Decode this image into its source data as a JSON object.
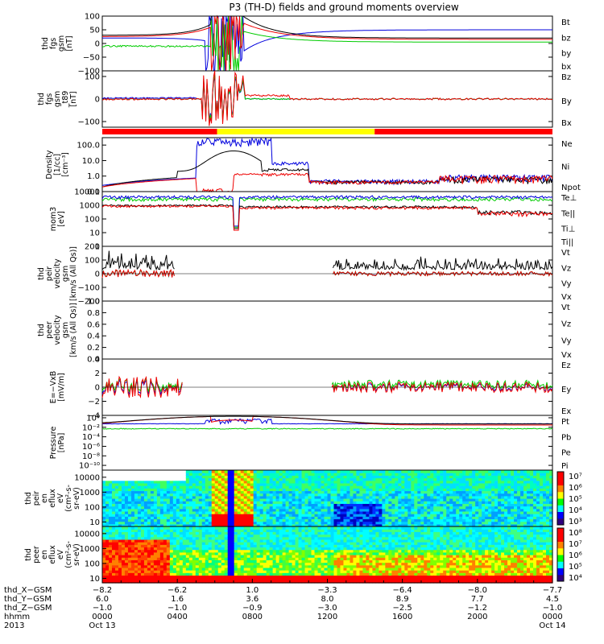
{
  "title": "P3 (TH-D) fields and ground moments overview",
  "colors": {
    "black": "#000000",
    "red": "#ee0000",
    "green": "#00cc00",
    "blue": "#0000dd",
    "yellow": "#ffff00",
    "redbar": "#ff0000",
    "cbar": [
      "#300080",
      "#0000ff",
      "#00ffff",
      "#00ff00",
      "#ffff00",
      "#ff8000",
      "#ff0000",
      "#ff0000"
    ]
  },
  "chart_data": [
    {
      "id": "fgs",
      "type": "line",
      "ylabel": [
        "thd",
        "fgs",
        "gsm",
        "[nT]"
      ],
      "yticks": [
        "100",
        "50",
        "0",
        "−50",
        "−100"
      ],
      "ytick_values": [
        100,
        50,
        0,
        -50,
        -100
      ],
      "ylim": [
        -100,
        100
      ],
      "legend": [
        {
          "label": "Bt",
          "color": "black"
        },
        {
          "label": "bz",
          "color": "red"
        },
        {
          "label": "by",
          "color": "green"
        },
        {
          "label": "bx",
          "color": "blue"
        }
      ]
    },
    {
      "id": "fgh",
      "type": "line",
      "ylabel": [
        "thd",
        "fgs",
        "gsm",
        "_t89",
        "[nT]"
      ],
      "yticks": [
        "100",
        "0",
        "−100"
      ],
      "ytick_values": [
        100,
        0,
        -100
      ],
      "ylim": [
        -125,
        125
      ],
      "legend": [
        {
          "label": "Bz",
          "color": "red"
        },
        {
          "label": "By",
          "color": "green"
        },
        {
          "label": "Bx",
          "color": "blue"
        }
      ]
    },
    {
      "id": "density",
      "type": "line",
      "ylabel": [
        "Density",
        "[1/cc]",
        "[cm⁻³]"
      ],
      "yticks": [
        "100.0",
        "10.0",
        "1.0",
        "0.1"
      ],
      "ytick_values": [
        100,
        10,
        1,
        0.1
      ],
      "ylim": [
        0.1,
        300
      ],
      "scale": "log",
      "legend": [
        {
          "label": "Ne",
          "color": "red"
        },
        {
          "label": "Ni",
          "color": "black"
        },
        {
          "label": "Npot",
          "color": "blue"
        }
      ]
    },
    {
      "id": "temp",
      "type": "line",
      "ylabel": [
        "mom3",
        "[eV]"
      ],
      "yticks": [
        "10000",
        "1000",
        "100",
        "10",
        "1"
      ],
      "ytick_values": [
        10000,
        1000,
        100,
        10,
        1
      ],
      "ylim": [
        1,
        10000
      ],
      "scale": "log",
      "legend": [
        {
          "label": "Te⊥",
          "color": "red"
        },
        {
          "label": "Te||",
          "color": "black"
        },
        {
          "label": "Ti⊥",
          "color": "blue"
        },
        {
          "label": "Ti||",
          "color": "green"
        }
      ]
    },
    {
      "id": "peir",
      "type": "line",
      "ylabel": [
        "thd",
        "peir",
        "velocity",
        "gsm",
        "[km/s (All Qs)]"
      ],
      "yticks": [
        "200",
        "100",
        "0",
        "−100",
        "−200"
      ],
      "ytick_values": [
        200,
        100,
        0,
        -100,
        -200
      ],
      "ylim": [
        -200,
        200
      ],
      "legend": [
        {
          "label": "Vt",
          "color": "black"
        },
        {
          "label": "Vz",
          "color": "red"
        },
        {
          "label": "Vy",
          "color": "green"
        },
        {
          "label": "Vx",
          "color": "blue"
        }
      ]
    },
    {
      "id": "peer",
      "type": "line",
      "ylabel": [
        "thd",
        "peer",
        "velocity",
        "gsm",
        "[km/s (All Qs)]"
      ],
      "yticks": [
        "1.0",
        "0.8",
        "0.6",
        "0.4",
        "0.2",
        "0.0"
      ],
      "ytick_values": [
        1.0,
        0.8,
        0.6,
        0.4,
        0.2,
        0.0
      ],
      "ylim": [
        0,
        1
      ],
      "legend": [
        {
          "label": "Vt",
          "color": "black"
        },
        {
          "label": "Vz",
          "color": "red"
        },
        {
          "label": "Vy",
          "color": "green"
        },
        {
          "label": "Vx",
          "color": "blue"
        }
      ]
    },
    {
      "id": "efield",
      "type": "line",
      "ylabel": [
        "E=−VxB",
        "[mV/m]"
      ],
      "yticks": [
        "4",
        "2",
        "0",
        "−2",
        "−4"
      ],
      "ytick_values": [
        4,
        2,
        0,
        -2,
        -4
      ],
      "ylim": [
        -4,
        4
      ],
      "legend": [
        {
          "label": "Ez",
          "color": "red"
        },
        {
          "label": "Ey",
          "color": "green"
        },
        {
          "label": "Ex",
          "color": "blue"
        }
      ]
    },
    {
      "id": "pressure",
      "type": "line",
      "ylabel": [
        "Pressure",
        "[nPa]"
      ],
      "yticks": [
        "10⁰",
        "10⁻²",
        "10⁻⁴",
        "10⁻⁶",
        "10⁻⁸",
        "10⁻¹⁰"
      ],
      "ytick_values": [
        0,
        -2,
        -4,
        -6,
        -8,
        -10
      ],
      "ylim": [
        -11,
        0.5
      ],
      "scale": "log",
      "legend": [
        {
          "label": "Pt",
          "color": "black"
        },
        {
          "label": "Pb",
          "color": "red"
        },
        {
          "label": "Pe",
          "color": "green"
        },
        {
          "label": "Pi",
          "color": "blue"
        }
      ]
    },
    {
      "id": "ion_spec",
      "type": "heatmap",
      "ylabel": [
        "thd",
        "peir",
        "en",
        "eflux",
        "eV",
        "(cm²-s-",
        "sr-eV)"
      ],
      "yticks": [
        "10000",
        "1000",
        "100",
        "10"
      ],
      "ytick_values": [
        10000,
        1000,
        100,
        10
      ],
      "ylim": [
        5,
        30000
      ],
      "scale": "log",
      "colorbar_labels": [
        "10⁷",
        "10⁶",
        "10⁵",
        "10⁴",
        "10³"
      ],
      "colorbar_values": [
        7,
        6,
        5,
        4,
        3
      ]
    },
    {
      "id": "ele_spec",
      "type": "heatmap",
      "ylabel": [
        "thd",
        "peer",
        "en",
        "eflux",
        "eV",
        "(cm²-s-",
        "sr-eV)"
      ],
      "yticks": [
        "10000",
        "1000",
        "100",
        "10"
      ],
      "ytick_values": [
        10000,
        1000,
        100,
        10
      ],
      "ylim": [
        5,
        30000
      ],
      "scale": "log",
      "colorbar_labels": [
        "10⁸",
        "10⁷",
        "10⁶",
        "10⁵",
        "10⁴"
      ],
      "colorbar_values": [
        8,
        7,
        6,
        5,
        4
      ]
    }
  ],
  "mode_bar": [
    {
      "from": 0,
      "to": 0.255,
      "color": "redbar"
    },
    {
      "from": 0.255,
      "to": 0.605,
      "color": "yellow"
    },
    {
      "from": 0.605,
      "to": 1,
      "color": "redbar"
    }
  ],
  "xaxis": {
    "row_labels": [
      "thd_X−GSM",
      "thd_Y−GSM",
      "thd_Z−GSM",
      "hhmm",
      "2013"
    ],
    "columns": [
      {
        "t": 0,
        "vals": [
          "−8.2",
          "6.0",
          "−1.0",
          "0000",
          "Oct 13"
        ]
      },
      {
        "t": 4,
        "vals": [
          "−6.2",
          "1.6",
          "−1.0",
          "0400",
          ""
        ]
      },
      {
        "t": 8,
        "vals": [
          "1.0",
          "3.6",
          "−0.9",
          "0800",
          ""
        ]
      },
      {
        "t": 12,
        "vals": [
          "−3.3",
          "8.0",
          "−3.0",
          "1200",
          ""
        ]
      },
      {
        "t": 16,
        "vals": [
          "−6.4",
          "8.9",
          "−2.5",
          "1600",
          ""
        ]
      },
      {
        "t": 20,
        "vals": [
          "−8.0",
          "7.7",
          "−1.2",
          "2000",
          ""
        ]
      },
      {
        "t": 24,
        "vals": [
          "−7.7",
          "4.5",
          "−1.0",
          "0000",
          "Oct 14"
        ]
      }
    ]
  }
}
